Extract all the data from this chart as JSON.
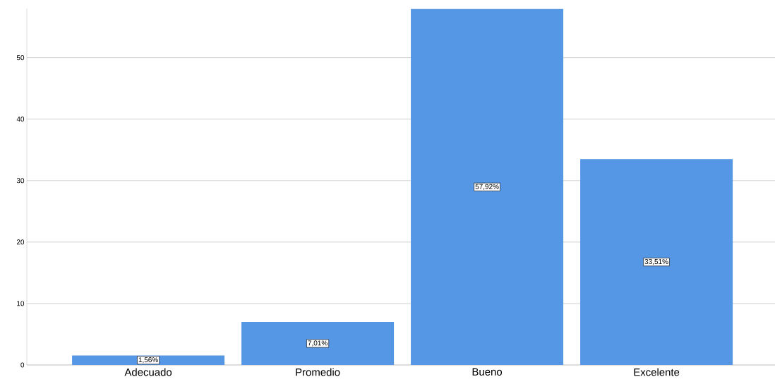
{
  "chart_data": {
    "type": "bar",
    "categories": [
      "Adecuado",
      "Promedio",
      "Bueno",
      "Excelente"
    ],
    "values": [
      1.56,
      7.01,
      57.92,
      33.51
    ],
    "value_labels": [
      "1,56%",
      "7,01%",
      "57,92%",
      "33,51%"
    ],
    "color": "#5597e5",
    "ylim": [
      0,
      58
    ],
    "yticks": [
      0,
      10,
      20,
      30,
      40,
      50
    ],
    "grid": "y"
  }
}
